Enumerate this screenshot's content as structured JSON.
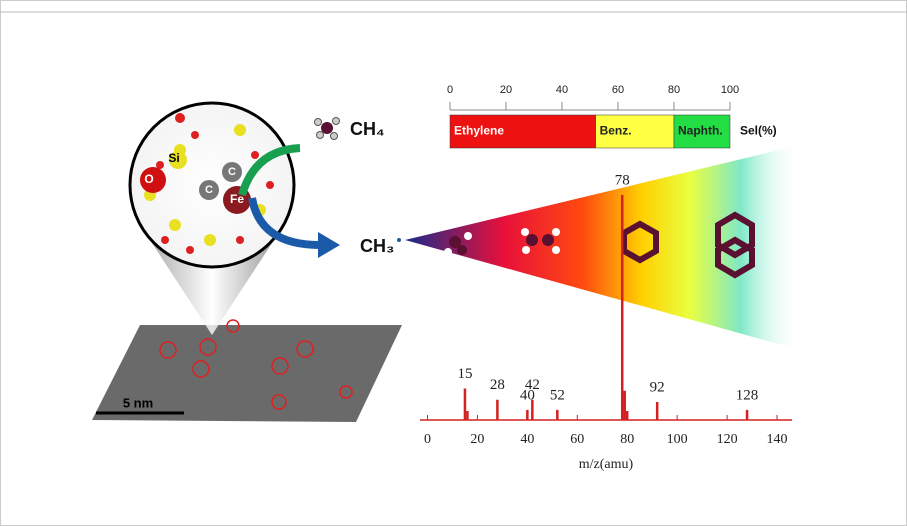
{
  "chart_data": [
    {
      "type": "stacked-bar",
      "xlim": [
        0,
        100
      ],
      "xticks": [
        0,
        20,
        40,
        60,
        80,
        100
      ],
      "x_label": "Sel(%)",
      "series": [
        {
          "name": "Ethylene",
          "color": "#ee1111",
          "values": [
            52
          ]
        },
        {
          "name": "Benz.",
          "color": "#ffff44",
          "values": [
            28
          ]
        },
        {
          "name": "Naphth.",
          "color": "#22dd44",
          "values": [
            20
          ]
        }
      ]
    },
    {
      "type": "stem",
      "color": "#d42020",
      "xlim": [
        -3,
        146
      ],
      "ylim": [
        0,
        100
      ],
      "xticks": [
        0,
        20,
        40,
        60,
        80,
        100,
        120,
        140
      ],
      "x_label": "m/z(amu)",
      "x": [
        15,
        16,
        28,
        40,
        42,
        52,
        78,
        79,
        80,
        92,
        128
      ],
      "values": [
        14,
        4,
        9,
        4.5,
        9,
        4.5,
        100,
        13,
        4,
        8,
        4.5
      ],
      "x_labels": [
        "15",
        null,
        "28",
        "40",
        "42",
        "52",
        "78",
        null,
        null,
        "92",
        "128"
      ]
    }
  ],
  "labels": {
    "methane": "CH₄",
    "methyl": "CH₃",
    "scale_bar": "5 nm",
    "si": "Si",
    "o": "O",
    "c1": "C",
    "c2": "C",
    "fe": "Fe"
  }
}
